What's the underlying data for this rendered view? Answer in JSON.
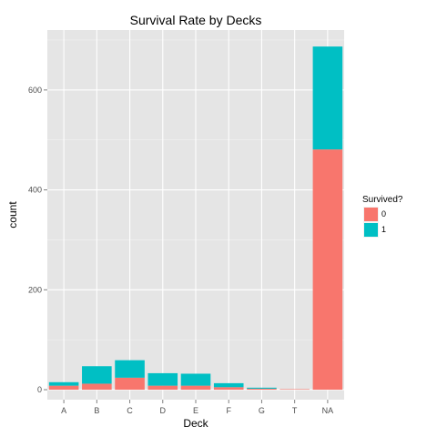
{
  "chart_data": {
    "type": "bar",
    "stacked": true,
    "title": "Survival Rate by Decks",
    "xlabel": "Deck",
    "ylabel": "count",
    "categories": [
      "A",
      "B",
      "C",
      "D",
      "E",
      "F",
      "G",
      "T",
      "NA"
    ],
    "series": [
      {
        "name": "0",
        "color": "#F8766D",
        "values": [
          8,
          12,
          24,
          8,
          8,
          5,
          2,
          1,
          481
        ]
      },
      {
        "name": "1",
        "color": "#00BFC4",
        "values": [
          7,
          35,
          35,
          25,
          24,
          8,
          2,
          0,
          206
        ]
      }
    ],
    "yticks": [
      0,
      200,
      400,
      600
    ],
    "ylim": [
      -20,
      720
    ],
    "grid": true,
    "legend": {
      "title": "Survived?",
      "position": "right"
    }
  }
}
